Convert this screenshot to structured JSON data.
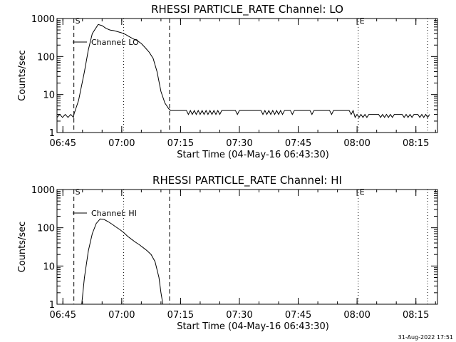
{
  "footer": {
    "timestamp": "31-Aug-2022 17:51"
  },
  "chart_data": [
    {
      "type": "line",
      "title": "RHESSI PARTICLE_RATE Channel: LO",
      "xlabel": "Start Time (04-May-16 06:43:30)",
      "ylabel": "Counts/sec",
      "yscale": "log",
      "ylim": [
        1,
        1000
      ],
      "xlim_minutes_after_0643_30": [
        0,
        97
      ],
      "x_tick_labels": [
        "06:45",
        "07:00",
        "07:15",
        "07:30",
        "07:45",
        "08:00",
        "08:15"
      ],
      "x_tick_minutes": [
        1.5,
        16.5,
        31.5,
        46.5,
        61.5,
        76.5,
        91.5
      ],
      "y_tick_labels": [
        "1",
        "10",
        "100",
        "1000"
      ],
      "y_tick_values": [
        1,
        10,
        100,
        1000
      ],
      "legend": {
        "position": "top-left",
        "label": "Channel: LO"
      },
      "markers": [
        {
          "label": "S",
          "minute": 4.3,
          "style": "dashed"
        },
        {
          "label": "",
          "minute": 28.7,
          "style": "dashed"
        },
        {
          "label": "",
          "minute": 17.0,
          "style": "dotted"
        },
        {
          "label": "E",
          "minute": 76.8,
          "style": "dotted"
        },
        {
          "label": "",
          "minute": 94.5,
          "style": "dotted"
        }
      ],
      "series": [
        {
          "name": "Channel: LO",
          "x": [
            0.0,
            0.7,
            1.4,
            2.1,
            2.8,
            3.5,
            4.2,
            4.3,
            5.5,
            7.0,
            8.0,
            9.0,
            10.5,
            11.5,
            12.5,
            13.5,
            14.5,
            15.5,
            16.5,
            17.5,
            18.5,
            19.5,
            20.5,
            21.5,
            22.5,
            23.5,
            24.5,
            25.5,
            26.5,
            27.5,
            28.5,
            29.0,
            29.5,
            31.0,
            33.0,
            33.5,
            34.0,
            34.5,
            35.0,
            35.5,
            36.0,
            36.5,
            37.0,
            37.5,
            38.0,
            38.5,
            39.0,
            39.5,
            40.0,
            40.5,
            41.0,
            41.5,
            42.0,
            45.5,
            46.0,
            46.5,
            52.0,
            52.5,
            53.0,
            53.5,
            54.0,
            54.5,
            55.0,
            55.5,
            56.0,
            56.5,
            57.0,
            57.5,
            58.0,
            59.5,
            60.0,
            60.5,
            64.5,
            65.0,
            65.5,
            69.5,
            70.0,
            70.5,
            74.5,
            75.0,
            75.5,
            76.0,
            76.5,
            77.0,
            77.5,
            78.0,
            78.5,
            79.0,
            79.5,
            80.0,
            80.5,
            81.0,
            81.5,
            82.0,
            82.5,
            83.0,
            83.5,
            84.0,
            84.5,
            85.0,
            85.5,
            86.0,
            86.5,
            87.0,
            87.5,
            88.0,
            88.5,
            89.0,
            89.5,
            90.0,
            90.5,
            91.0,
            91.5,
            92.0,
            92.5,
            93.0,
            93.5,
            94.0,
            94.5,
            95.0
          ],
          "values": [
            2.5,
            3.0,
            2.5,
            3.0,
            2.5,
            3.0,
            2.5,
            3.0,
            7,
            40,
            150,
            400,
            700,
            650,
            550,
            500,
            480,
            450,
            420,
            380,
            330,
            290,
            260,
            220,
            170,
            130,
            90,
            40,
            12,
            6,
            4.2,
            3.8,
            3.8,
            3.8,
            3.8,
            3.0,
            3.8,
            3.0,
            3.8,
            3.0,
            3.8,
            3.0,
            3.8,
            3.0,
            3.8,
            3.0,
            3.8,
            3.0,
            3.8,
            3.0,
            3.8,
            3.0,
            3.8,
            3.8,
            3.0,
            3.8,
            3.8,
            3.0,
            3.8,
            3.0,
            3.8,
            3.0,
            3.8,
            3.0,
            3.8,
            3.0,
            3.8,
            3.0,
            3.8,
            3.8,
            3.0,
            3.8,
            3.8,
            3.0,
            3.8,
            3.8,
            3.0,
            3.8,
            3.8,
            3.0,
            3.8,
            2.5,
            3.0,
            2.5,
            3.0,
            2.5,
            3.0,
            2.5,
            3.0,
            3.0,
            3.0,
            3.0,
            3.0,
            3.0,
            2.5,
            3.0,
            2.5,
            3.0,
            2.5,
            3.0,
            2.5,
            3.0,
            3.0,
            3.0,
            3.0,
            3.0,
            2.5,
            3.0,
            2.5,
            3.0,
            2.5,
            3.0,
            3.0,
            3.0,
            2.5,
            3.0,
            2.5,
            3.0,
            2.5,
            3.0
          ]
        }
      ]
    },
    {
      "type": "line",
      "title": "RHESSI PARTICLE_RATE Channel: HI",
      "xlabel": "Start Time (04-May-16 06:43:30)",
      "ylabel": "Counts/sec",
      "yscale": "log",
      "ylim": [
        1,
        1000
      ],
      "xlim_minutes_after_0643_30": [
        0,
        97
      ],
      "x_tick_labels": [
        "06:45",
        "07:00",
        "07:15",
        "07:30",
        "07:45",
        "08:00",
        "08:15"
      ],
      "x_tick_minutes": [
        1.5,
        16.5,
        31.5,
        46.5,
        61.5,
        76.5,
        91.5
      ],
      "y_tick_labels": [
        "1",
        "10",
        "100",
        "1000"
      ],
      "y_tick_values": [
        1,
        10,
        100,
        1000
      ],
      "legend": {
        "position": "top-left",
        "label": "Channel: HI"
      },
      "markers": [
        {
          "label": "S",
          "minute": 4.3,
          "style": "dashed"
        },
        {
          "label": "",
          "minute": 28.7,
          "style": "dashed"
        },
        {
          "label": "",
          "minute": 17.0,
          "style": "dotted"
        },
        {
          "label": "E",
          "minute": 76.8,
          "style": "dotted"
        },
        {
          "label": "",
          "minute": 94.5,
          "style": "dotted"
        }
      ],
      "series": [
        {
          "name": "Channel: HI",
          "x": [
            6.3,
            7.0,
            8.0,
            9.0,
            10.0,
            11.0,
            12.0,
            13.0,
            14.0,
            15.0,
            16.0,
            17.0,
            18.0,
            19.0,
            20.0,
            21.0,
            22.0,
            23.0,
            24.0,
            25.0,
            26.0,
            26.5,
            27.0
          ],
          "values": [
            1.0,
            5,
            25,
            70,
            130,
            170,
            165,
            145,
            125,
            105,
            90,
            75,
            60,
            50,
            42,
            36,
            30,
            25,
            20,
            13,
            5,
            2,
            1.0
          ]
        }
      ]
    }
  ]
}
